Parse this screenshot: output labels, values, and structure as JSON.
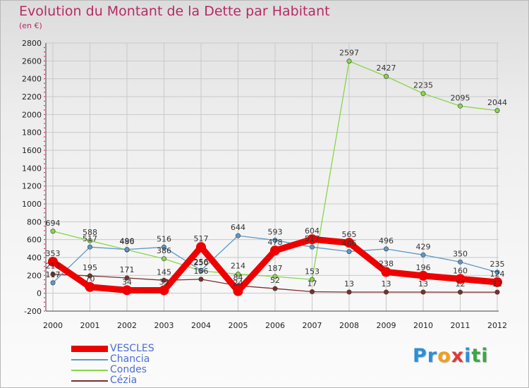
{
  "title": "Evolution du Montant de la Dette par Habitant",
  "unit": "(en €)",
  "logo_letters": [
    {
      "ch": "P",
      "color": "#2b8fd8"
    },
    {
      "ch": "r",
      "color": "#2b8fd8"
    },
    {
      "ch": "o",
      "color": "#f0a020"
    },
    {
      "ch": "x",
      "color": "#e03a3a"
    },
    {
      "ch": "i",
      "color": "#2b8fd8"
    },
    {
      "ch": "t",
      "color": "#39a845"
    },
    {
      "ch": "i",
      "color": "#39a845"
    }
  ],
  "chart_data": {
    "type": "line",
    "x": [
      "2000",
      "2001",
      "2002",
      "2003",
      "2004",
      "2005",
      "2006",
      "2007",
      "2008",
      "2009",
      "2010",
      "2011",
      "2012"
    ],
    "ylim": [
      -200,
      2800
    ],
    "yticks": [
      "-200",
      "0",
      "200",
      "400",
      "600",
      "800",
      "1000",
      "1200",
      "1400",
      "1600",
      "1800",
      "2000",
      "2200",
      "2400",
      "2600",
      "2800"
    ],
    "grid": true,
    "legend_position": "bottom-left",
    "series": [
      {
        "name": "VESCLES",
        "color": "#ee0000",
        "values": [
          353,
          70,
          34,
          33,
          517,
          24,
          478,
          604,
          565,
          238,
          196,
          160,
          124
        ],
        "labels": [
          "353",
          "70",
          "34",
          "33",
          "517",
          "24",
          "478",
          "604",
          "565",
          "238",
          "196",
          "160",
          "124"
        ]
      },
      {
        "name": "Chancia",
        "color": "#5d98c9",
        "values": [
          117,
          517,
          490,
          516,
          256,
          644,
          593,
          517,
          466,
          496,
          429,
          350,
          235
        ],
        "labels": [
          "117",
          "517",
          "490",
          "516",
          "256",
          "644",
          "593",
          "517",
          "466",
          "496",
          "429",
          "350",
          "235"
        ]
      },
      {
        "name": "Condes",
        "color": "#88d64a",
        "values": [
          694,
          588,
          486,
          386,
          250,
          214,
          187,
          153,
          2597,
          2427,
          2235,
          2095,
          2044
        ],
        "labels": [
          "694",
          "588",
          "486",
          "386",
          "250",
          "214",
          "187",
          "153",
          "2597",
          "2427",
          "2235",
          "2095",
          "2044"
        ]
      },
      {
        "name": "Cézia",
        "color": "#7a2f2f",
        "values": [
          213,
          195,
          171,
          145,
          156,
          84,
          52,
          17,
          13,
          13,
          13,
          12,
          12
        ],
        "labels": [
          "213",
          "195",
          "171",
          "145",
          "156",
          "84",
          "52",
          "17",
          "13",
          "13",
          "13",
          "12",
          "12"
        ]
      }
    ]
  }
}
